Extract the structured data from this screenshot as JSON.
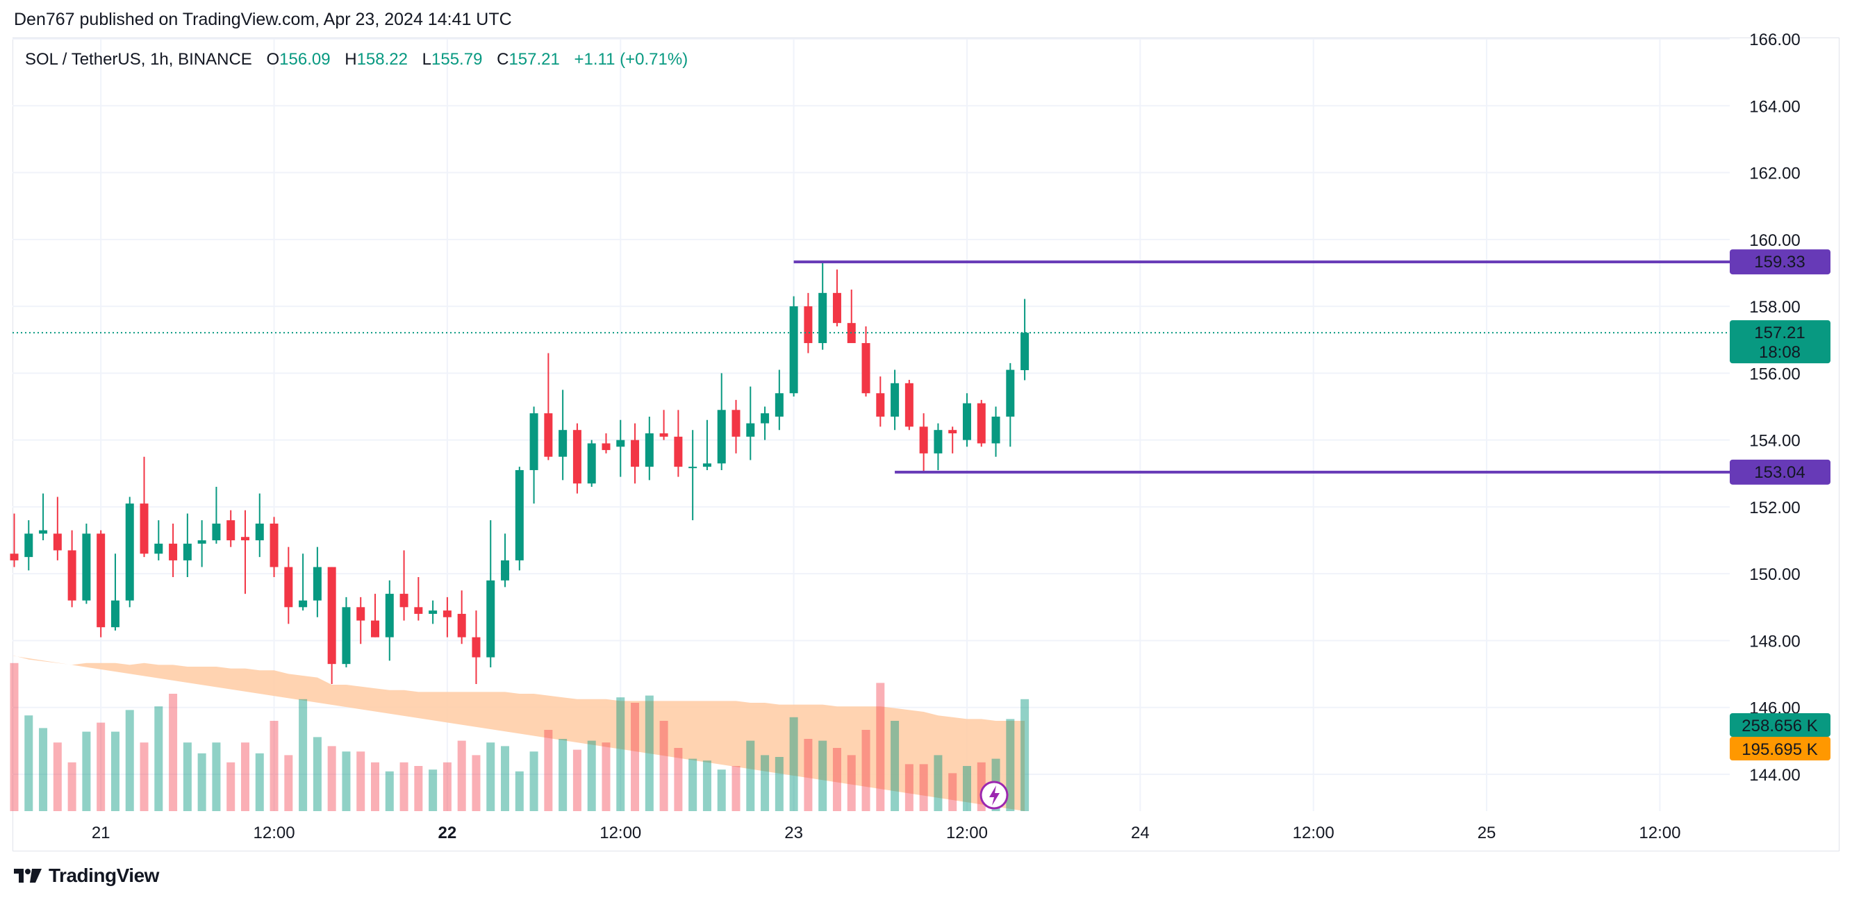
{
  "header": {
    "published": "Den767 published on TradingView.com, Apr 23, 2024 14:41 UTC"
  },
  "legend": {
    "symbol": "SOL / TetherUS, 1h, BINANCE",
    "o_label": "O",
    "o_value": "156.09",
    "h_label": "H",
    "h_value": "158.22",
    "l_label": "L",
    "l_value": "155.79",
    "c_label": "C",
    "c_value": "157.21",
    "change": "+1.11 (+0.71%)"
  },
  "footer": {
    "brand": "TradingView",
    "logo_icon": "tradingview-logo-icon"
  },
  "colors": {
    "up": "#089981",
    "down": "#f23645",
    "level": "#673ab7",
    "volume_ma": "#ff9800",
    "grid": "#f0f3fa"
  },
  "price_labels": {
    "resistance": "159.33",
    "last": "157.21",
    "countdown": "18:08",
    "support": "153.04",
    "volume": "258.656 K",
    "volume_ma": "195.695 K"
  },
  "chart_data": {
    "type": "candlestick",
    "symbol": "SOL / TetherUS",
    "interval": "1h",
    "exchange": "BINANCE",
    "ylim": [
      143.0,
      166.0
    ],
    "y_ticks": [
      "166.00",
      "164.00",
      "162.00",
      "160.00",
      "158.00",
      "156.00",
      "154.00",
      "152.00",
      "150.00",
      "148.00",
      "146.00",
      "144.00"
    ],
    "x_ticks": [
      {
        "label": "21",
        "index": 6,
        "bold": false
      },
      {
        "label": "12:00",
        "index": 18,
        "bold": false
      },
      {
        "label": "22",
        "index": 30,
        "bold": true
      },
      {
        "label": "12:00",
        "index": 42,
        "bold": false
      },
      {
        "label": "23",
        "index": 54,
        "bold": false
      },
      {
        "label": "12:00",
        "index": 66,
        "bold": false
      },
      {
        "label": "24",
        "index": 78,
        "bold": false
      },
      {
        "label": "12:00",
        "index": 90,
        "bold": false
      },
      {
        "label": "25",
        "index": 102,
        "bold": false
      },
      {
        "label": "12:00",
        "index": 114,
        "bold": false
      }
    ],
    "horizontal_levels": [
      {
        "price": 159.33,
        "from_index": 54
      },
      {
        "price": 153.04,
        "from_index": 61
      }
    ],
    "last_price": 157.21,
    "candles": [
      [
        150.6,
        151.8,
        150.2,
        150.4
      ],
      [
        150.5,
        151.6,
        150.1,
        151.2
      ],
      [
        151.2,
        152.4,
        151.0,
        151.3
      ],
      [
        151.2,
        152.3,
        150.4,
        150.7
      ],
      [
        150.7,
        151.3,
        149.0,
        149.2
      ],
      [
        149.2,
        151.5,
        149.1,
        151.2
      ],
      [
        151.2,
        151.3,
        148.1,
        148.4
      ],
      [
        148.4,
        150.6,
        148.3,
        149.2
      ],
      [
        149.2,
        152.3,
        149.0,
        152.1
      ],
      [
        152.1,
        153.5,
        150.5,
        150.6
      ],
      [
        150.6,
        151.6,
        150.4,
        150.9
      ],
      [
        150.9,
        151.5,
        149.9,
        150.4
      ],
      [
        150.4,
        151.8,
        149.9,
        150.9
      ],
      [
        150.9,
        151.6,
        150.2,
        151.0
      ],
      [
        151.0,
        152.6,
        150.9,
        151.5
      ],
      [
        151.6,
        151.9,
        150.8,
        151.0
      ],
      [
        151.1,
        151.9,
        149.4,
        151.0
      ],
      [
        151.0,
        152.4,
        150.5,
        151.5
      ],
      [
        151.5,
        151.7,
        149.9,
        150.2
      ],
      [
        150.2,
        150.8,
        148.5,
        149.0
      ],
      [
        149.0,
        150.6,
        148.9,
        149.2
      ],
      [
        149.2,
        150.8,
        148.7,
        150.2
      ],
      [
        150.2,
        150.2,
        146.7,
        147.3
      ],
      [
        147.3,
        149.3,
        147.2,
        149.0
      ],
      [
        149.0,
        149.3,
        147.9,
        148.6
      ],
      [
        148.6,
        149.4,
        148.1,
        148.1
      ],
      [
        148.1,
        149.8,
        147.4,
        149.4
      ],
      [
        149.4,
        150.7,
        148.6,
        149.0
      ],
      [
        149.0,
        149.9,
        148.6,
        148.8
      ],
      [
        148.8,
        149.2,
        148.5,
        148.9
      ],
      [
        148.9,
        149.3,
        148.1,
        148.7
      ],
      [
        148.8,
        149.5,
        147.9,
        148.1
      ],
      [
        148.1,
        148.9,
        146.7,
        147.5
      ],
      [
        147.5,
        151.6,
        147.2,
        149.8
      ],
      [
        149.8,
        151.2,
        149.6,
        150.4
      ],
      [
        150.4,
        153.2,
        150.1,
        153.1
      ],
      [
        153.1,
        155.0,
        152.1,
        154.8
      ],
      [
        154.8,
        156.6,
        153.4,
        153.5
      ],
      [
        153.5,
        155.5,
        152.8,
        154.3
      ],
      [
        154.3,
        154.5,
        152.4,
        152.7
      ],
      [
        152.7,
        154.0,
        152.6,
        153.9
      ],
      [
        153.9,
        154.2,
        153.6,
        153.7
      ],
      [
        153.8,
        154.6,
        152.9,
        154.0
      ],
      [
        154.0,
        154.5,
        152.7,
        153.2
      ],
      [
        153.2,
        154.7,
        152.8,
        154.2
      ],
      [
        154.2,
        154.9,
        154.0,
        154.1
      ],
      [
        154.1,
        154.9,
        152.9,
        153.2
      ],
      [
        153.2,
        154.3,
        151.6,
        153.2
      ],
      [
        153.2,
        154.6,
        153.1,
        153.3
      ],
      [
        153.3,
        156.0,
        153.1,
        154.9
      ],
      [
        154.9,
        155.2,
        153.6,
        154.1
      ],
      [
        154.1,
        155.6,
        153.4,
        154.5
      ],
      [
        154.5,
        155.0,
        154.0,
        154.8
      ],
      [
        154.7,
        156.1,
        154.3,
        155.4
      ],
      [
        155.4,
        158.3,
        155.3,
        158.0
      ],
      [
        158.0,
        158.4,
        156.6,
        156.9
      ],
      [
        156.9,
        159.33,
        156.7,
        158.4
      ],
      [
        158.4,
        159.1,
        157.4,
        157.5
      ],
      [
        157.5,
        158.5,
        156.9,
        156.9
      ],
      [
        156.9,
        157.4,
        155.3,
        155.4
      ],
      [
        155.4,
        155.9,
        154.4,
        154.7
      ],
      [
        154.7,
        156.1,
        154.3,
        155.7
      ],
      [
        155.7,
        155.8,
        154.3,
        154.4
      ],
      [
        154.4,
        154.8,
        153.04,
        153.6
      ],
      [
        153.6,
        154.5,
        153.1,
        154.3
      ],
      [
        154.3,
        154.4,
        153.6,
        154.2
      ],
      [
        154.0,
        155.4,
        153.8,
        155.1
      ],
      [
        155.1,
        155.2,
        153.8,
        153.9
      ],
      [
        153.9,
        155.0,
        153.5,
        154.7
      ],
      [
        154.7,
        156.3,
        153.8,
        156.1
      ],
      [
        156.09,
        158.22,
        155.79,
        157.21
      ]
    ],
    "volume_ma": [
      0.86,
      0.84,
      0.83,
      0.82,
      0.81,
      0.82,
      0.82,
      0.82,
      0.81,
      0.82,
      0.81,
      0.81,
      0.8,
      0.8,
      0.8,
      0.79,
      0.79,
      0.78,
      0.78,
      0.76,
      0.75,
      0.74,
      0.7,
      0.7,
      0.69,
      0.68,
      0.67,
      0.67,
      0.66,
      0.66,
      0.66,
      0.66,
      0.66,
      0.66,
      0.66,
      0.65,
      0.65,
      0.64,
      0.63,
      0.62,
      0.62,
      0.62,
      0.61,
      0.61,
      0.61,
      0.61,
      0.61,
      0.61,
      0.61,
      0.61,
      0.61,
      0.6,
      0.6,
      0.59,
      0.59,
      0.59,
      0.59,
      0.58,
      0.58,
      0.58,
      0.58,
      0.57,
      0.56,
      0.55,
      0.53,
      0.52,
      0.51,
      0.51,
      0.5,
      0.5,
      0.5
    ],
    "volume": [
      0.82,
      0.53,
      0.46,
      0.38,
      0.27,
      0.44,
      0.49,
      0.44,
      0.56,
      0.38,
      0.58,
      0.65,
      0.38,
      0.32,
      0.38,
      0.27,
      0.38,
      0.32,
      0.5,
      0.31,
      0.62,
      0.41,
      0.36,
      0.33,
      0.33,
      0.27,
      0.22,
      0.27,
      0.25,
      0.23,
      0.27,
      0.39,
      0.31,
      0.38,
      0.36,
      0.22,
      0.33,
      0.45,
      0.4,
      0.34,
      0.39,
      0.38,
      0.63,
      0.6,
      0.64,
      0.5,
      0.35,
      0.29,
      0.28,
      0.23,
      0.25,
      0.39,
      0.31,
      0.3,
      0.52,
      0.4,
      0.39,
      0.35,
      0.31,
      0.45,
      0.71,
      0.5,
      0.26,
      0.26,
      0.31,
      0.21,
      0.25,
      0.27,
      0.29,
      0.51,
      0.62
    ],
    "volume_max_ref": 1.0
  }
}
